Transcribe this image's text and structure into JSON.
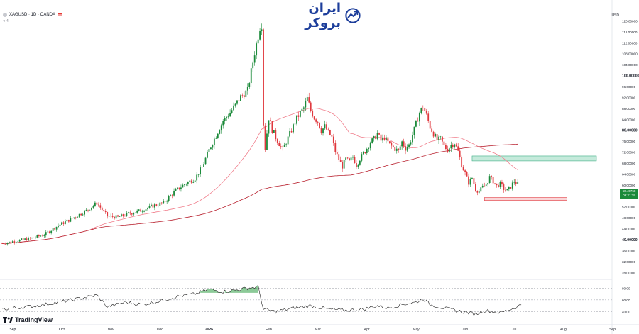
{
  "header": {
    "symbol": "XAGUSD · 1D · OANDA",
    "indicator_line": "∨ 4",
    "currency": "USD",
    "brand_text": "ایران بروکر",
    "tradingview_label": "TradingView"
  },
  "last_price": {
    "value": "60.45768",
    "countdown": "06:21:19"
  },
  "colors": {
    "up": "#1b8a3a",
    "down": "#e0383e",
    "ma_fast": "#f07c8a",
    "ma_slow": "#b8202e",
    "rsi": "#1e1e1e",
    "rsi_fill": "#2e9e44",
    "supply_zone": "#7fd1b0",
    "demand_zone": "#f4a5a9"
  },
  "chart_data": {
    "type": "candlestick",
    "title": "",
    "y_axis_labels": [
      "120.00000",
      "116.00000",
      "112.00000",
      "108.00000",
      "104.00000",
      "100.00000",
      "96.00000",
      "92.00000",
      "88.00000",
      "84.00000",
      "80.00000",
      "76.00000",
      "72.00000",
      "68.00000",
      "64.00000",
      "60.00000",
      "56.00000",
      "52.00000",
      "48.00000",
      "44.00000",
      "40.00000",
      "36.00000",
      "32.00000",
      "28.00000"
    ],
    "y_axis_label_values": [
      120,
      116,
      112,
      108,
      104,
      100,
      96,
      92,
      88,
      84,
      80,
      76,
      72,
      68,
      64,
      60,
      56,
      52,
      48,
      44,
      40,
      36,
      32,
      28
    ],
    "bold_levels": [
      100,
      80,
      40
    ],
    "x_axis_labels": [
      "Sep",
      "Oct",
      "Nov",
      "Dec",
      "2026",
      "Feb",
      "Mar",
      "Apr",
      "May",
      "Jun",
      "Jul",
      "Aug",
      "Sep"
    ],
    "x_axis_label_index": [
      6,
      34,
      62,
      90,
      118,
      152,
      180,
      208,
      236,
      264,
      292,
      320,
      348
    ],
    "ylim": [
      26,
      124
    ],
    "price_anchors": [
      [
        0,
        38.6
      ],
      [
        8,
        39.6
      ],
      [
        16,
        40.4
      ],
      [
        24,
        41.8
      ],
      [
        32,
        45.2
      ],
      [
        40,
        47.8
      ],
      [
        48,
        50.6
      ],
      [
        54,
        53.4
      ],
      [
        60,
        48.6
      ],
      [
        66,
        48.2
      ],
      [
        72,
        49.5
      ],
      [
        80,
        50.8
      ],
      [
        86,
        52.4
      ],
      [
        92,
        53.5
      ],
      [
        98,
        57.4
      ],
      [
        104,
        60.3
      ],
      [
        110,
        62.4
      ],
      [
        114,
        66.5
      ],
      [
        118,
        72.8
      ],
      [
        122,
        78.2
      ],
      [
        126,
        83.4
      ],
      [
        130,
        86.4
      ],
      [
        136,
        92.2
      ],
      [
        140,
        94.6
      ],
      [
        144,
        108.4
      ],
      [
        147,
        117.6
      ],
      [
        148,
        118.6
      ],
      [
        149,
        82.4
      ],
      [
        150,
        73.4
      ],
      [
        152,
        84.6
      ],
      [
        154,
        80.2
      ],
      [
        156,
        77.4
      ],
      [
        160,
        72.8
      ],
      [
        164,
        78.6
      ],
      [
        168,
        84.4
      ],
      [
        172,
        88.2
      ],
      [
        174,
        91.6
      ],
      [
        176,
        87.2
      ],
      [
        178,
        84.6
      ],
      [
        180,
        83.2
      ],
      [
        182,
        79.8
      ],
      [
        184,
        81.4
      ],
      [
        186,
        79.2
      ],
      [
        188,
        77.4
      ],
      [
        190,
        72.2
      ],
      [
        192,
        69.4
      ],
      [
        194,
        66.8
      ],
      [
        196,
        69.4
      ],
      [
        198,
        68.4
      ],
      [
        200,
        70.2
      ],
      [
        202,
        67.4
      ],
      [
        204,
        69.6
      ],
      [
        206,
        71.4
      ],
      [
        208,
        73.4
      ],
      [
        210,
        75.6
      ],
      [
        212,
        76.8
      ],
      [
        214,
        78.8
      ],
      [
        216,
        76.2
      ],
      [
        218,
        77.4
      ],
      [
        220,
        75.6
      ],
      [
        222,
        74.2
      ],
      [
        224,
        73.2
      ],
      [
        226,
        72.4
      ],
      [
        228,
        75.8
      ],
      [
        230,
        73.4
      ],
      [
        232,
        74.6
      ],
      [
        234,
        78.2
      ],
      [
        236,
        82.4
      ],
      [
        238,
        86.4
      ],
      [
        240,
        88.6
      ],
      [
        242,
        85.4
      ],
      [
        244,
        81.2
      ],
      [
        246,
        78.8
      ],
      [
        248,
        76.4
      ],
      [
        250,
        76.8
      ],
      [
        252,
        74.2
      ],
      [
        254,
        72.8
      ],
      [
        256,
        74.6
      ],
      [
        258,
        75.4
      ],
      [
        260,
        72.2
      ],
      [
        262,
        67.4
      ],
      [
        264,
        64.2
      ],
      [
        266,
        60.8
      ],
      [
        268,
        62.6
      ],
      [
        270,
        58.4
      ],
      [
        272,
        57.6
      ],
      [
        274,
        59.2
      ],
      [
        276,
        60.2
      ],
      [
        278,
        62.8
      ],
      [
        280,
        61.4
      ],
      [
        282,
        59.6
      ],
      [
        284,
        60.4
      ],
      [
        286,
        58.6
      ],
      [
        288,
        57.8
      ],
      [
        290,
        59.4
      ],
      [
        292,
        61.4
      ],
      [
        294,
        60.4
      ]
    ],
    "overlays": {
      "sma_fast_name": "",
      "sma_slow_name": ""
    },
    "supply_zone": {
      "low": 68.8,
      "high": 70.6,
      "from_index": 268,
      "to_index": 348
    },
    "demand_zone": {
      "low": 54.4,
      "high": 55.4,
      "from_index": 275,
      "to_index": 322
    },
    "rsi": {
      "labels": [
        "80.00",
        "60.00",
        "40.00"
      ],
      "levels": [
        80,
        60,
        40
      ],
      "ylim": [
        20,
        90
      ],
      "anchors": [
        [
          0,
          44
        ],
        [
          20,
          50
        ],
        [
          40,
          60
        ],
        [
          54,
          68
        ],
        [
          60,
          48
        ],
        [
          70,
          56
        ],
        [
          80,
          52
        ],
        [
          90,
          58
        ],
        [
          100,
          66
        ],
        [
          110,
          70
        ],
        [
          118,
          78
        ],
        [
          126,
          74
        ],
        [
          132,
          76
        ],
        [
          140,
          80
        ],
        [
          146,
          82
        ],
        [
          149,
          44
        ],
        [
          156,
          40
        ],
        [
          166,
          46
        ],
        [
          176,
          50
        ],
        [
          186,
          44
        ],
        [
          196,
          42
        ],
        [
          206,
          44
        ],
        [
          214,
          50
        ],
        [
          220,
          46
        ],
        [
          228,
          52
        ],
        [
          236,
          56
        ],
        [
          240,
          62
        ],
        [
          244,
          52
        ],
        [
          252,
          46
        ],
        [
          262,
          40
        ],
        [
          270,
          36
        ],
        [
          276,
          42
        ],
        [
          284,
          38
        ],
        [
          292,
          46
        ],
        [
          296,
          52
        ]
      ]
    }
  }
}
